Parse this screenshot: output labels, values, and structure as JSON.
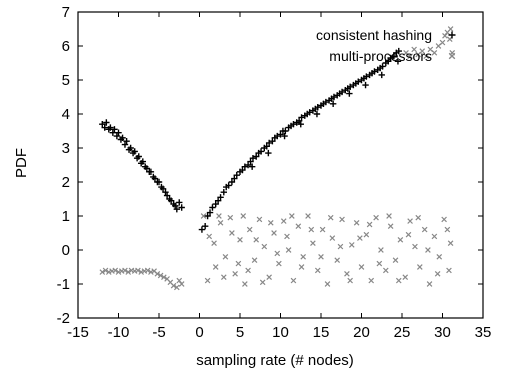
{
  "chart_data": {
    "type": "scatter",
    "title": "",
    "xlabel": "sampling rate (# nodes)",
    "ylabel": "PDF",
    "xlim": [
      -15,
      35
    ],
    "ylim": [
      -2,
      7
    ],
    "xticks": [
      -15,
      -10,
      -5,
      0,
      5,
      10,
      15,
      20,
      25,
      30,
      35
    ],
    "yticks": [
      -2,
      -1,
      0,
      1,
      2,
      3,
      4,
      5,
      6,
      7
    ],
    "grid": false,
    "legend_position": "top-right",
    "series": [
      {
        "name": "consistent hashing",
        "marker": "plus",
        "color": "#000000",
        "points": [
          [
            -12,
            3.7
          ],
          [
            -11.7,
            3.6
          ],
          [
            -11.5,
            3.75
          ],
          [
            -11.2,
            3.55
          ],
          [
            -11,
            3.6
          ],
          [
            -10.7,
            3.45
          ],
          [
            -10.5,
            3.55
          ],
          [
            -10.2,
            3.35
          ],
          [
            -10,
            3.45
          ],
          [
            -9.7,
            3.25
          ],
          [
            -9.5,
            3.3
          ],
          [
            -9.2,
            3.1
          ],
          [
            -9,
            3.2
          ],
          [
            -8.7,
            2.95
          ],
          [
            -8.5,
            3.0
          ],
          [
            -8.2,
            2.85
          ],
          [
            -8,
            2.9
          ],
          [
            -7.7,
            2.7
          ],
          [
            -7.5,
            2.75
          ],
          [
            -7.2,
            2.55
          ],
          [
            -7,
            2.6
          ],
          [
            -6.7,
            2.45
          ],
          [
            -6.5,
            2.4
          ],
          [
            -6.2,
            2.3
          ],
          [
            -6,
            2.3
          ],
          [
            -5.7,
            2.15
          ],
          [
            -5.5,
            2.1
          ],
          [
            -5.2,
            2.0
          ],
          [
            -5,
            2.0
          ],
          [
            -4.7,
            1.85
          ],
          [
            -4.5,
            1.8
          ],
          [
            -4.2,
            1.7
          ],
          [
            -4,
            1.6
          ],
          [
            -3.7,
            1.5
          ],
          [
            -3.5,
            1.45
          ],
          [
            -3.2,
            1.35
          ],
          [
            -3,
            1.3
          ],
          [
            -2.8,
            1.2
          ],
          [
            -2.5,
            1.4
          ],
          [
            -2.2,
            1.25
          ],
          [
            0.3,
            0.6
          ],
          [
            0.7,
            0.7
          ],
          [
            1,
            1.0
          ],
          [
            1.3,
            1.1
          ],
          [
            1.6,
            1.25
          ],
          [
            2,
            1.35
          ],
          [
            2.3,
            1.45
          ],
          [
            2.6,
            1.55
          ],
          [
            3,
            1.7
          ],
          [
            3.3,
            1.85
          ],
          [
            3.6,
            1.9
          ],
          [
            4,
            2.0
          ],
          [
            4.3,
            2.1
          ],
          [
            4.6,
            2.2
          ],
          [
            5,
            2.3
          ],
          [
            5.3,
            2.35
          ],
          [
            5.6,
            2.45
          ],
          [
            6,
            2.5
          ],
          [
            6.3,
            2.6
          ],
          [
            6.6,
            2.7
          ],
          [
            7,
            2.75
          ],
          [
            7.3,
            2.85
          ],
          [
            7.6,
            2.9
          ],
          [
            8,
            3.0
          ],
          [
            8.3,
            3.05
          ],
          [
            8.6,
            3.15
          ],
          [
            9,
            3.2
          ],
          [
            9.3,
            3.3
          ],
          [
            9.6,
            3.35
          ],
          [
            10,
            3.4
          ],
          [
            10.3,
            3.5
          ],
          [
            10.6,
            3.5
          ],
          [
            11,
            3.6
          ],
          [
            11.3,
            3.65
          ],
          [
            11.6,
            3.7
          ],
          [
            12,
            3.75
          ],
          [
            12.3,
            3.8
          ],
          [
            12.6,
            3.9
          ],
          [
            13,
            3.95
          ],
          [
            13.3,
            4.0
          ],
          [
            13.6,
            4.05
          ],
          [
            14,
            4.1
          ],
          [
            14.3,
            4.15
          ],
          [
            14.6,
            4.2
          ],
          [
            15,
            4.25
          ],
          [
            15.3,
            4.3
          ],
          [
            15.6,
            4.35
          ],
          [
            16,
            4.4
          ],
          [
            16.3,
            4.45
          ],
          [
            16.6,
            4.5
          ],
          [
            17,
            4.55
          ],
          [
            17.3,
            4.6
          ],
          [
            17.6,
            4.65
          ],
          [
            18,
            4.7
          ],
          [
            18.3,
            4.75
          ],
          [
            18.6,
            4.8
          ],
          [
            19,
            4.85
          ],
          [
            19.3,
            4.9
          ],
          [
            19.6,
            4.95
          ],
          [
            20,
            5.0
          ],
          [
            20.3,
            5.05
          ],
          [
            20.6,
            5.1
          ],
          [
            21,
            5.15
          ],
          [
            21.3,
            5.2
          ],
          [
            21.6,
            5.25
          ],
          [
            22,
            5.3
          ],
          [
            22.3,
            5.35
          ],
          [
            22.6,
            5.4
          ],
          [
            23,
            5.5
          ],
          [
            23.3,
            5.55
          ],
          [
            23.6,
            5.65
          ],
          [
            24,
            5.7
          ],
          [
            24.3,
            5.8
          ],
          [
            24.6,
            5.85
          ],
          [
            10.5,
            3.35
          ],
          [
            12.5,
            3.7
          ],
          [
            14.5,
            4.0
          ],
          [
            16.5,
            4.3
          ],
          [
            18.5,
            4.6
          ],
          [
            20.5,
            4.85
          ],
          [
            22.5,
            5.15
          ],
          [
            24.5,
            5.55
          ],
          [
            6.5,
            2.45
          ],
          [
            8.5,
            2.85
          ]
        ]
      },
      {
        "name": "multi-processors",
        "marker": "cross",
        "color": "#888888",
        "points": [
          [
            -12,
            -0.65
          ],
          [
            -11.6,
            -0.6
          ],
          [
            -11.2,
            -0.65
          ],
          [
            -10.8,
            -0.62
          ],
          [
            -10.4,
            -0.6
          ],
          [
            -10,
            -0.65
          ],
          [
            -9.6,
            -0.62
          ],
          [
            -9.2,
            -0.6
          ],
          [
            -8.8,
            -0.65
          ],
          [
            -8.4,
            -0.6
          ],
          [
            -8,
            -0.62
          ],
          [
            -7.6,
            -0.6
          ],
          [
            -7.2,
            -0.65
          ],
          [
            -6.8,
            -0.62
          ],
          [
            -6.4,
            -0.6
          ],
          [
            -6,
            -0.65
          ],
          [
            -5.6,
            -0.62
          ],
          [
            -5.2,
            -0.7
          ],
          [
            -4.8,
            -0.75
          ],
          [
            -4.4,
            -0.8
          ],
          [
            -4,
            -0.85
          ],
          [
            -3.6,
            -0.95
          ],
          [
            -3.2,
            -1.05
          ],
          [
            -2.8,
            -1.1
          ],
          [
            -2.5,
            -0.9
          ],
          [
            -2.2,
            -1.0
          ],
          [
            0.5,
            1.0
          ],
          [
            1.2,
            0.4
          ],
          [
            2,
            -0.5
          ],
          [
            2.6,
            0.8
          ],
          [
            3.2,
            -0.2
          ],
          [
            3.8,
            0.95
          ],
          [
            4.4,
            -0.7
          ],
          [
            5,
            0.3
          ],
          [
            5.6,
            -1.0
          ],
          [
            6.2,
            0.6
          ],
          [
            6.8,
            -0.3
          ],
          [
            7.4,
            0.9
          ],
          [
            8,
            0.1
          ],
          [
            8.6,
            -0.8
          ],
          [
            9.2,
            0.5
          ],
          [
            9.8,
            -0.4
          ],
          [
            10.4,
            0.85
          ],
          [
            11,
            0.0
          ],
          [
            11.6,
            -0.9
          ],
          [
            12.2,
            0.7
          ],
          [
            12.8,
            -0.2
          ],
          [
            13.4,
            1.0
          ],
          [
            14,
            0.2
          ],
          [
            14.6,
            -0.6
          ],
          [
            15.2,
            0.6
          ],
          [
            15.8,
            -1.0
          ],
          [
            16.4,
            0.35
          ],
          [
            17,
            -0.3
          ],
          [
            17.6,
            0.9
          ],
          [
            18.2,
            -0.7
          ],
          [
            18.8,
            0.15
          ],
          [
            19.4,
            0.8
          ],
          [
            20,
            -0.5
          ],
          [
            20.6,
            0.45
          ],
          [
            21.2,
            -0.9
          ],
          [
            21.8,
            0.95
          ],
          [
            22.4,
            0.0
          ],
          [
            23,
            -0.6
          ],
          [
            23.6,
            0.7
          ],
          [
            24.2,
            -0.3
          ],
          [
            24.8,
            0.3
          ],
          [
            25.4,
            -0.8
          ],
          [
            26,
            0.85
          ],
          [
            26.6,
            0.1
          ],
          [
            27.2,
            -0.5
          ],
          [
            27.8,
            0.6
          ],
          [
            28.4,
            -1.0
          ],
          [
            29,
            0.4
          ],
          [
            29.6,
            -0.2
          ],
          [
            30.2,
            0.9
          ],
          [
            30.8,
            -0.6
          ],
          [
            31,
            0.2
          ],
          [
            1,
            -0.9
          ],
          [
            1.8,
            0.2
          ],
          [
            2.4,
            1.0
          ],
          [
            3,
            -0.8
          ],
          [
            4,
            0.5
          ],
          [
            4.8,
            -0.4
          ],
          [
            5.4,
            1.0
          ],
          [
            6,
            -0.6
          ],
          [
            7,
            0.3
          ],
          [
            7.8,
            -0.95
          ],
          [
            8.8,
            0.8
          ],
          [
            9.6,
            -0.1
          ],
          [
            10.8,
            0.4
          ],
          [
            11.4,
            1.0
          ],
          [
            12.6,
            -0.5
          ],
          [
            13.8,
            0.6
          ],
          [
            15,
            -0.2
          ],
          [
            16.2,
            0.95
          ],
          [
            17.4,
            0.1
          ],
          [
            18.6,
            -0.9
          ],
          [
            19.8,
            0.35
          ],
          [
            21,
            0.75
          ],
          [
            22.2,
            -0.4
          ],
          [
            23.4,
            1.0
          ],
          [
            24.6,
            -0.9
          ],
          [
            25.8,
            0.45
          ],
          [
            27,
            0.95
          ],
          [
            28.2,
            0.0
          ],
          [
            29.4,
            -0.7
          ],
          [
            30.6,
            0.6
          ],
          [
            25.5,
            5.8
          ],
          [
            26,
            5.7
          ],
          [
            26.5,
            5.9
          ],
          [
            27,
            5.75
          ],
          [
            27.5,
            5.85
          ],
          [
            28,
            5.7
          ],
          [
            28.5,
            5.9
          ],
          [
            29,
            5.8
          ],
          [
            29.5,
            6.0
          ],
          [
            30,
            6.1
          ],
          [
            30.3,
            6.3
          ],
          [
            30.6,
            6.4
          ],
          [
            30.9,
            6.2
          ],
          [
            31,
            6.5
          ],
          [
            31.2,
            5.8
          ]
        ]
      }
    ]
  }
}
